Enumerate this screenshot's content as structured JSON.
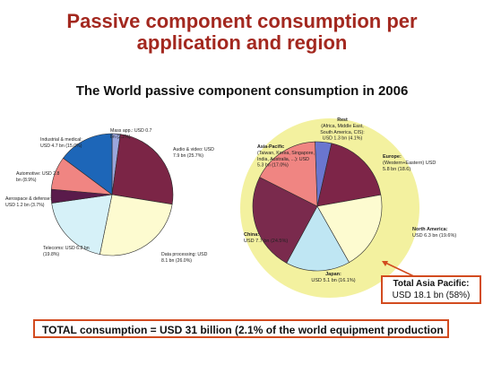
{
  "header": {
    "title_line1": "Passive component consumption per",
    "title_line2": "application and region",
    "subtitle": "The World passive component consumption in 2006"
  },
  "chart_data": [
    {
      "type": "pie",
      "title": "",
      "slices": [
        {
          "label": "Mass app.: USD 0.7 bn (2.2%)",
          "value": 2.2,
          "color": "#9aa6dc"
        },
        {
          "label": "Audio & video: USD 7.9 bn (25.7%)",
          "value": 25.7,
          "color": "#7b2546"
        },
        {
          "label": "Data processing: USD 8.1 bn (26.0%)",
          "value": 26.0,
          "color": "#fdfbd0"
        },
        {
          "label": "Telecoms: USD 6.2 bn (19.8%)",
          "value": 19.8,
          "color": "#d6f1f8"
        },
        {
          "label": "Aerospace & defense: USD 1.2 bn (3.7%)",
          "value": 3.7,
          "color": "#5a1b4b"
        },
        {
          "label": "Automotive: USD 2.8 bn (8.9%)",
          "value": 8.9,
          "color": "#f08582"
        },
        {
          "label": "Industrial & medical: USD 4.7 bn (15.0%)",
          "value": 15.0,
          "color": "#1d66b8"
        }
      ]
    },
    {
      "type": "pie",
      "title": "",
      "slices": [
        {
          "label": "Rest (Africa, Middle East, South America, CIS): USD 1.3 bn (4.1%)",
          "value": 4.1,
          "color": "#6a76cf"
        },
        {
          "label": "Europe: (Western+Eastern) USD 5.8 bn (18.6)",
          "value": 18.6,
          "color": "#7d2548"
        },
        {
          "label": "North America: USD 6.3 bn (19.6%)",
          "value": 19.6,
          "color": "#fdfbd0"
        },
        {
          "label": "Japan: USD 5.1 bn (16.1%)",
          "value": 16.1,
          "color": "#bfe6f3"
        },
        {
          "label": "China: USD 7.7 bn (24.5%)",
          "value": 24.5,
          "color": "#7a2a4d"
        },
        {
          "label": "Asia-Pacific (Taiwan, Korea, Singapore, India, Australia, ...): USD 5.3 bn (17.0%)",
          "value": 17.0,
          "color": "#f08582"
        }
      ]
    }
  ],
  "left_labels": {
    "mass": [
      "Mass app.: USD 0.7",
      "bn (2.2%)"
    ],
    "audio": [
      "Audio & video: USD",
      "7.9 bn (25.7%)"
    ],
    "data": [
      "Data processing: USD",
      "8.1 bn (26.0%)"
    ],
    "telecoms": [
      "Telecoms: USD 6.2 bn",
      "(19.8%)"
    ],
    "aero": [
      "Aerospace & defense:",
      "USD 1.2 bn (3.7%)"
    ],
    "auto": [
      "Automotive: USD 2.8",
      "bn (8.9%)"
    ],
    "industrial": [
      "Industrial & medical:",
      "USD 4.7 bn (15.0%)"
    ]
  },
  "right_labels": {
    "rest": [
      "Rest",
      "(Africa, Middle East,",
      "South America, CIS):",
      "USD 1.3 bn (4.1%)"
    ],
    "europe": [
      "Europe:",
      "(Western+Eastern) USD",
      "5.8 bn (18.6)"
    ],
    "na": [
      "North America:",
      "USD 6.3 bn (19.6%)"
    ],
    "japan": [
      "Japan:",
      "USD 5.1 bn (16.1%)"
    ],
    "china": [
      "China:",
      "USD 7.7 bn (24.5%)"
    ],
    "ap": [
      "Asia-Pacific",
      "(Taiwan, Korea, Singapore,",
      "India, Australia, ...): USD",
      "5.3 bn (17.0%)"
    ]
  },
  "highlight": {
    "line1": "Total Asia Pacific:",
    "line2": "USD 18.1 bn (58%)",
    "halo_color": "#f1ee8e"
  },
  "footer": {
    "total": "TOTAL consumption = USD 31 billion (2.1% of the world equipment production"
  }
}
